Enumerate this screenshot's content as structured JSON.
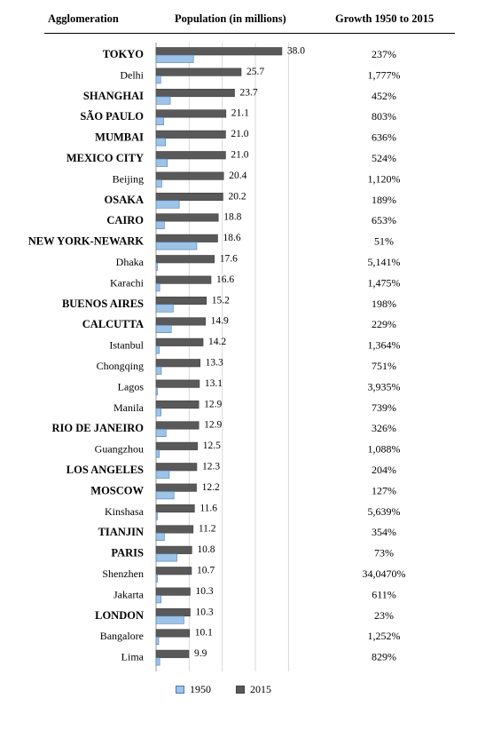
{
  "header": {
    "col1": "Agglomeration",
    "col2": "Population (in millions)",
    "col3": "Growth 1950 to 2015"
  },
  "chart_data": {
    "type": "bar",
    "orientation": "horizontal",
    "grid": true,
    "legend_placement": "bottom",
    "xlim": [
      0,
      40
    ],
    "categories": [
      "TOKYO",
      "Delhi",
      "SHANGHAI",
      "SÃO PAULO",
      "MUMBAI",
      "MEXICO CITY",
      "Beijing",
      "OSAKA",
      "CAIRO",
      "NEW YORK-NEWARK",
      "Dhaka",
      "Karachi",
      "BUENOS AIRES",
      "CALCUTTA",
      "Istanbul",
      "Chongqing",
      "Lagos",
      "Manila",
      "RIO DE JANEIRO",
      "Guangzhou",
      "LOS ANGELES",
      "MOSCOW",
      "Kinshasa",
      "TIANJIN",
      "PARIS",
      "Shenzhen",
      "Jakarta",
      "LONDON",
      "Bangalore",
      "Lima"
    ],
    "bold": [
      true,
      false,
      true,
      true,
      true,
      true,
      false,
      true,
      true,
      true,
      false,
      false,
      true,
      true,
      false,
      false,
      false,
      false,
      true,
      false,
      true,
      true,
      false,
      true,
      true,
      false,
      false,
      true,
      false,
      false
    ],
    "series": [
      {
        "name": "1950",
        "color": "#9dc3e6",
        "values": [
          11.3,
          1.4,
          4.3,
          2.3,
          2.9,
          3.4,
          1.7,
          7.0,
          2.5,
          12.3,
          0.3,
          1.1,
          5.2,
          4.6,
          1.0,
          1.6,
          0.3,
          1.5,
          3.0,
          1.0,
          4.0,
          5.4,
          0.2,
          2.5,
          6.3,
          0.03,
          1.5,
          8.4,
          0.8,
          1.1
        ]
      },
      {
        "name": "2015",
        "color": "#595959",
        "values": [
          38.0,
          25.7,
          23.7,
          21.1,
          21.0,
          21.0,
          20.4,
          20.2,
          18.8,
          18.6,
          17.6,
          16.6,
          15.2,
          14.9,
          14.2,
          13.3,
          13.1,
          12.9,
          12.9,
          12.5,
          12.3,
          12.2,
          11.6,
          11.2,
          10.8,
          10.7,
          10.3,
          10.3,
          10.1,
          9.9
        ]
      }
    ],
    "value_labels": [
      "38.0",
      "25.7",
      "23.7",
      "21.1",
      "21.0",
      "21.0",
      "20.4",
      "20.2",
      "18.8",
      "18.6",
      "17.6",
      "16.6",
      "15.2",
      "14.9",
      "14.2",
      "13.3",
      "13.1",
      "12.9",
      "12.9",
      "12.5",
      "12.3",
      "12.2",
      "11.6",
      "11.2",
      "10.8",
      "10.7",
      "10.3",
      "10.3",
      "10.1",
      "9.9"
    ],
    "growth": [
      "237%",
      "1,777%",
      "452%",
      "803%",
      "636%",
      "524%",
      "1,120%",
      "189%",
      "653%",
      "51%",
      "5,141%",
      "1,475%",
      "198%",
      "229%",
      "1,364%",
      "751%",
      "3,935%",
      "739%",
      "326%",
      "1,088%",
      "204%",
      "127%",
      "5,639%",
      "354%",
      "73%",
      "34,0470%",
      "611%",
      "23%",
      "1,252%",
      "829%"
    ]
  }
}
